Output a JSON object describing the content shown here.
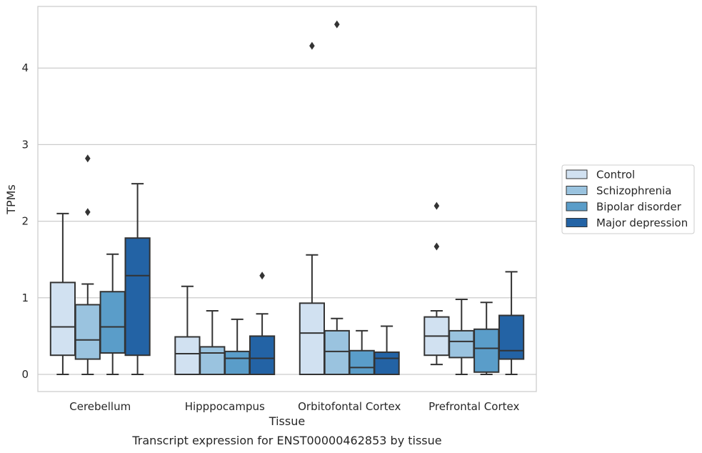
{
  "caption": "Transcript expression for ENST00000462853 by tissue",
  "chart_data": {
    "type": "box",
    "xlabel": "Tissue",
    "ylabel": "TPMs",
    "ylim": [
      -0.22,
      4.8
    ],
    "yticks": [
      0,
      1,
      2,
      3,
      4
    ],
    "grid": "horizontal",
    "legend_position": "right",
    "categories": [
      "Cerebellum",
      "Hipppocampus",
      "Orbitofontal Cortex",
      "Prefrontal Cortex"
    ],
    "series": [
      {
        "name": "Control",
        "color": "#d1e1f1",
        "boxes": [
          {
            "whislo": 0.0,
            "q1": 0.25,
            "med": 0.62,
            "q3": 1.2,
            "whishi": 2.1,
            "fliers": []
          },
          {
            "whislo": 0.0,
            "q1": 0.0,
            "med": 0.27,
            "q3": 0.49,
            "whishi": 1.15,
            "fliers": []
          },
          {
            "whislo": 0.0,
            "q1": 0.0,
            "med": 0.54,
            "q3": 0.93,
            "whishi": 1.56,
            "fliers": [
              4.29
            ]
          },
          {
            "whislo": 0.13,
            "q1": 0.25,
            "med": 0.5,
            "q3": 0.75,
            "whishi": 0.83,
            "fliers": [
              1.67,
              2.2
            ]
          }
        ]
      },
      {
        "name": "Schizophrenia",
        "color": "#9ac3df",
        "boxes": [
          {
            "whislo": 0.0,
            "q1": 0.2,
            "med": 0.45,
            "q3": 0.91,
            "whishi": 1.18,
            "fliers": [
              2.12,
              2.82
            ]
          },
          {
            "whislo": 0.0,
            "q1": 0.0,
            "med": 0.28,
            "q3": 0.36,
            "whishi": 0.83,
            "fliers": []
          },
          {
            "whislo": 0.0,
            "q1": 0.0,
            "med": 0.3,
            "q3": 0.57,
            "whishi": 0.73,
            "fliers": [
              4.57
            ]
          },
          {
            "whislo": 0.0,
            "q1": 0.22,
            "med": 0.43,
            "q3": 0.57,
            "whishi": 0.98,
            "fliers": []
          }
        ]
      },
      {
        "name": "Bipolar disorder",
        "color": "#5a9dc9",
        "boxes": [
          {
            "whislo": 0.0,
            "q1": 0.28,
            "med": 0.62,
            "q3": 1.08,
            "whishi": 1.57,
            "fliers": []
          },
          {
            "whislo": 0.0,
            "q1": 0.0,
            "med": 0.21,
            "q3": 0.3,
            "whishi": 0.72,
            "fliers": []
          },
          {
            "whislo": 0.0,
            "q1": 0.0,
            "med": 0.09,
            "q3": 0.31,
            "whishi": 0.57,
            "fliers": []
          },
          {
            "whislo": 0.0,
            "q1": 0.03,
            "med": 0.34,
            "q3": 0.59,
            "whishi": 0.94,
            "fliers": []
          }
        ]
      },
      {
        "name": "Major depression",
        "color": "#2363a5",
        "boxes": [
          {
            "whislo": 0.0,
            "q1": 0.25,
            "med": 1.29,
            "q3": 1.78,
            "whishi": 2.49,
            "fliers": []
          },
          {
            "whislo": 0.0,
            "q1": 0.0,
            "med": 0.21,
            "q3": 0.5,
            "whishi": 0.79,
            "fliers": [
              1.29
            ]
          },
          {
            "whislo": 0.0,
            "q1": 0.0,
            "med": 0.21,
            "q3": 0.29,
            "whishi": 0.63,
            "fliers": []
          },
          {
            "whislo": 0.0,
            "q1": 0.2,
            "med": 0.31,
            "q3": 0.77,
            "whishi": 1.34,
            "fliers": []
          }
        ]
      }
    ]
  },
  "colors": {
    "grid": "#cccccc",
    "frame": "#cccccc",
    "box_edge": "#333333",
    "text": "#262626"
  }
}
